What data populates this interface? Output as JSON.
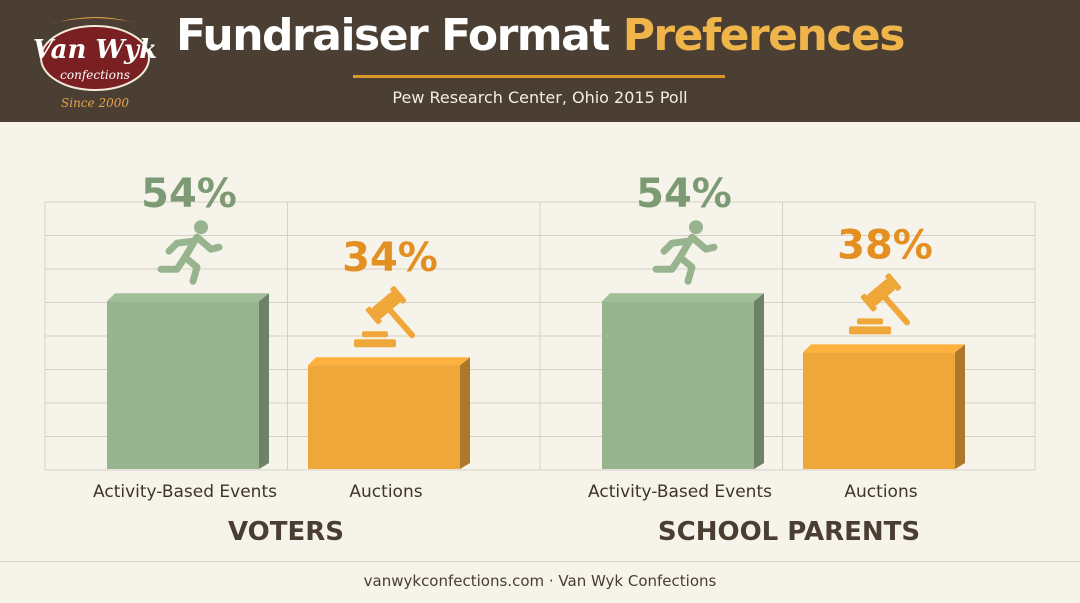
{
  "header": {
    "title_main": "Fundraiser Format",
    "title_accent": "Preferences",
    "subtitle": "Pew Research Center, Ohio 2015 Poll"
  },
  "logo": {
    "brand_top": "Van Wyk",
    "brand_bottom": "confections",
    "since": "Since 2000"
  },
  "footer": {
    "text": "vanwykconfections.com · Van Wyk Confections"
  },
  "colors": {
    "header_bg": "#4b3f33",
    "accent": "#f0b54a",
    "green": "#98b48f",
    "orange": "#f0a73a"
  },
  "chart_data": [
    {
      "type": "bar",
      "title": "VOTERS",
      "categories": [
        "Activity-Based Events",
        "Auctions"
      ],
      "values": [
        54,
        34
      ],
      "value_labels": [
        "54%",
        "34%"
      ],
      "icons": [
        "running-person-icon",
        "gavel-icon"
      ],
      "ylim": [
        0,
        100
      ],
      "grid": true
    },
    {
      "type": "bar",
      "title": "SCHOOL PARENTS",
      "categories": [
        "Activity-Based Events",
        "Auctions"
      ],
      "values": [
        54,
        38
      ],
      "value_labels": [
        "54%",
        "38%"
      ],
      "icons": [
        "running-person-icon",
        "gavel-icon"
      ],
      "ylim": [
        0,
        100
      ],
      "grid": true
    }
  ]
}
